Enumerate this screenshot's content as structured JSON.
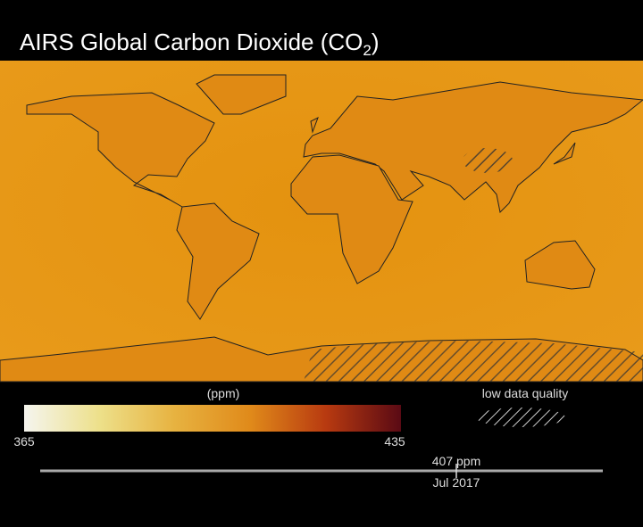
{
  "header": {
    "title": "AIRS Global Carbon Dioxide",
    "formula_open": "(CO",
    "formula_subscript": "2",
    "formula_close": ")"
  },
  "colorbar": {
    "label": "(ppm)",
    "min": 365,
    "max": 435
  },
  "legend": {
    "low_quality": "low data quality"
  },
  "timeline": {
    "value": 407,
    "unit": "ppm",
    "month": "Jul",
    "year": 2017
  }
}
